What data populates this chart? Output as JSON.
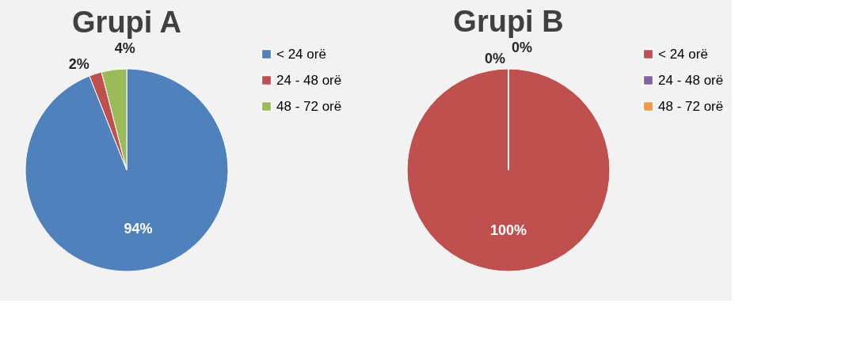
{
  "chart_data": [
    {
      "type": "pie",
      "title": "Grupi A",
      "categories": [
        "< 24 orë",
        "24 - 48 orë",
        "48 - 72 orë"
      ],
      "values": [
        94,
        2,
        4
      ],
      "colors": [
        "#4f81bd",
        "#c0504d",
        "#9bbb59"
      ],
      "value_labels": [
        "94%",
        "2%",
        "4%"
      ],
      "legend": "right"
    },
    {
      "type": "pie",
      "title": "Grupi B",
      "categories": [
        "< 24 orë",
        "24 - 48 orë",
        "48 - 72 orë"
      ],
      "values": [
        100,
        0,
        0
      ],
      "colors": [
        "#c0504d",
        "#8064a2",
        "#f79646"
      ],
      "value_labels": [
        "100%",
        "0%",
        "0%"
      ],
      "legend": "right"
    }
  ]
}
